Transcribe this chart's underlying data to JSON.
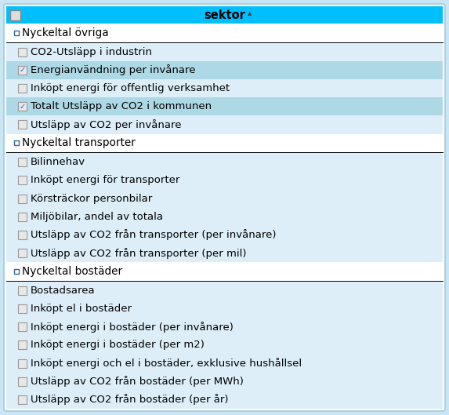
{
  "figwidth": 5.73,
  "figheight": 5.29,
  "dpi": 100,
  "bg_color": "#C8E6F4",
  "panel_bg": "#FFFFFF",
  "header_bg": "#00BFFF",
  "header_text": "sektor",
  "header_text_color": "#000000",
  "header_font_size": 10.5,
  "sep_color": "#000000",
  "item_font_size": 9.5,
  "cat_font_size": 9.8,
  "checkbox_border": "#999999",
  "checkbox_fill": "#E8E8E8",
  "check_color": "#2255CC",
  "cat_bullet_color": "#336699",
  "checked_row_bg": "#ADD8E6",
  "unchecked_row_bg": "#DDEEF8",
  "cat_row_bg": "#FFFFFF",
  "rows": [
    {
      "type": "header"
    },
    {
      "type": "category",
      "label": "Nyckeltal övriga"
    },
    {
      "type": "separator"
    },
    {
      "type": "item",
      "label": "CO2-Utsläpp i industrin",
      "checked": false
    },
    {
      "type": "item",
      "label": "Energianvändning per invånare",
      "checked": true
    },
    {
      "type": "item",
      "label": "Inköpt energi för offentlig verksamhet",
      "checked": false
    },
    {
      "type": "item",
      "label": "Totalt Utsläpp av CO2 i kommunen",
      "checked": true
    },
    {
      "type": "item",
      "label": "Utsläpp av CO2 per invånare",
      "checked": false
    },
    {
      "type": "category",
      "label": "Nyckeltal transporter"
    },
    {
      "type": "separator"
    },
    {
      "type": "item",
      "label": "Bilinnehav",
      "checked": false
    },
    {
      "type": "item",
      "label": "Inköpt energi för transporter",
      "checked": false
    },
    {
      "type": "item",
      "label": "Körsträckor personbilar",
      "checked": false
    },
    {
      "type": "item",
      "label": "Miljöbilar, andel av totala",
      "checked": false
    },
    {
      "type": "item",
      "label": "Utsläpp av CO2 från transporter (per invånare)",
      "checked": false
    },
    {
      "type": "item",
      "label": "Utsläpp av CO2 från transporter (per mil)",
      "checked": false
    },
    {
      "type": "category",
      "label": "Nyckeltal bostäder"
    },
    {
      "type": "separator"
    },
    {
      "type": "item",
      "label": "Bostadsarea",
      "checked": false
    },
    {
      "type": "item",
      "label": "Inköpt el i bostäder",
      "checked": false
    },
    {
      "type": "item",
      "label": "Inköpt energi i bostäder (per invånare)",
      "checked": false
    },
    {
      "type": "item",
      "label": "Inköpt energi i bostäder (per m2)",
      "checked": false
    },
    {
      "type": "item",
      "label": "Inköpt energi och el i bostäder, exklusive hushållsel",
      "checked": false
    },
    {
      "type": "item",
      "label": "Utsläpp av CO2 från bostäder (per MWh)",
      "checked": false
    },
    {
      "type": "item",
      "label": "Utsläpp av CO2 från bostäder (per år)",
      "checked": false
    }
  ]
}
